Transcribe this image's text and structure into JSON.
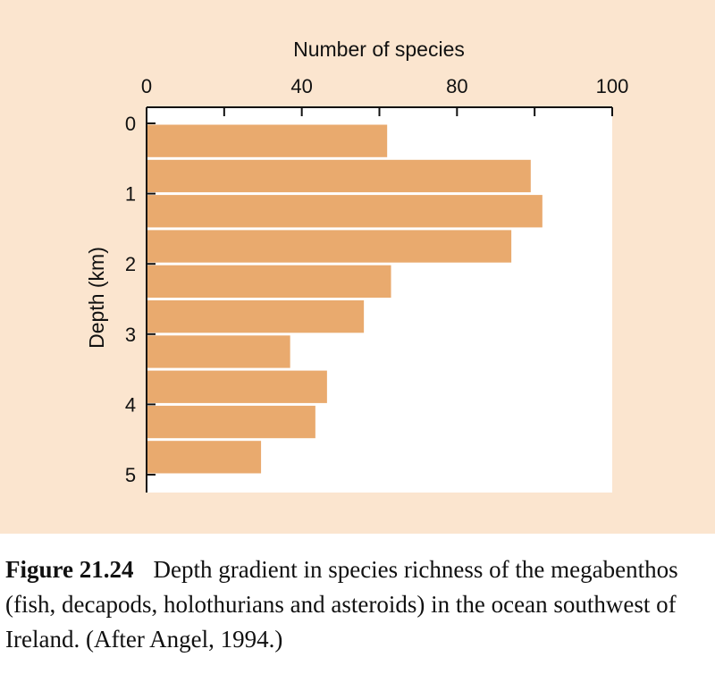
{
  "chart_data": {
    "type": "bar",
    "orientation": "horizontal",
    "xlabel": "Number of species",
    "ylabel": "Depth (km)",
    "xlim": [
      0,
      120
    ],
    "ylim": [
      0,
      5.25
    ],
    "x_ticks": [
      0,
      40,
      80,
      100
    ],
    "x_minor_ticks": [
      20,
      60,
      100
    ],
    "y_ticks": [
      0,
      1,
      2,
      3,
      4,
      5
    ],
    "bins": [
      {
        "depth_from": 0.0,
        "depth_to": 0.5,
        "value": 62
      },
      {
        "depth_from": 0.5,
        "depth_to": 1.0,
        "value": 99
      },
      {
        "depth_from": 1.0,
        "depth_to": 1.5,
        "value": 102
      },
      {
        "depth_from": 1.5,
        "depth_to": 2.0,
        "value": 94
      },
      {
        "depth_from": 2.0,
        "depth_to": 2.5,
        "value": 63
      },
      {
        "depth_from": 2.5,
        "depth_to": 3.0,
        "value": 56
      },
      {
        "depth_from": 3.0,
        "depth_to": 3.5,
        "value": 37
      },
      {
        "depth_from": 3.5,
        "depth_to": 4.0,
        "value": 46.5
      },
      {
        "depth_from": 4.0,
        "depth_to": 4.5,
        "value": 43.5
      },
      {
        "depth_from": 4.5,
        "depth_to": 5.0,
        "value": 29.5
      }
    ],
    "grid": false,
    "colors": {
      "bar": "#e9aa6e",
      "plot_background": "#ffffff",
      "panel_background": "#fbe5cf"
    }
  },
  "caption": {
    "label": "Figure 21.24",
    "text": "Depth gradient in species richness of the megabenthos (fish, decapods, holothurians and asteroids) in the ocean southwest of Ireland. (After Angel, 1994.)"
  }
}
